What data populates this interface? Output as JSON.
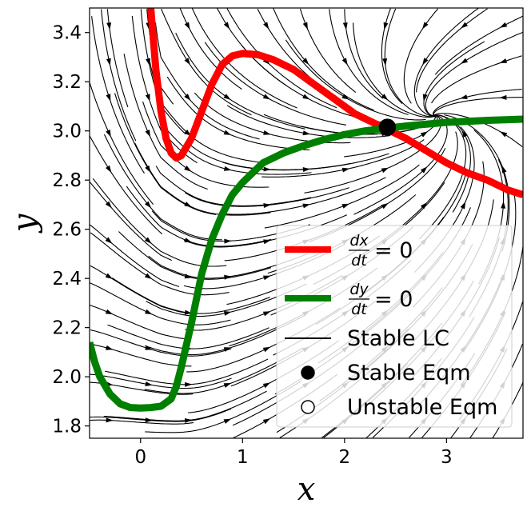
{
  "chart_data": {
    "type": "line",
    "title": "",
    "xlabel": "x",
    "ylabel": "y",
    "xlim": [
      -0.5,
      3.75
    ],
    "ylim": [
      1.75,
      3.5
    ],
    "x_ticks": [
      0,
      1,
      2,
      3
    ],
    "x_tick_labels": [
      "0",
      "1",
      "2",
      "3"
    ],
    "y_ticks": [
      1.8,
      2.0,
      2.2,
      2.4,
      2.6,
      2.8,
      3.0,
      3.2,
      3.4
    ],
    "y_tick_labels": [
      "1.8",
      "2.0",
      "2.2",
      "2.4",
      "2.6",
      "2.8",
      "3.0",
      "3.2",
      "3.4"
    ],
    "grid": false,
    "background": "streamplot of the vector field (black streamlines with arrowheads)",
    "legend_position": "bottom-right",
    "series": [
      {
        "name": "dx/dt = 0",
        "color": "#ff0000",
        "x": [
          0.1,
          0.15,
          0.2,
          0.25,
          0.3,
          0.35,
          0.4,
          0.5,
          0.6,
          0.7,
          0.8,
          0.9,
          1.0,
          1.15,
          1.3,
          1.5,
          1.7,
          1.9,
          2.1,
          2.3,
          2.4,
          2.6,
          2.8,
          3.0,
          3.2,
          3.4,
          3.6,
          3.75
        ],
        "y": [
          3.5,
          3.25,
          3.08,
          2.97,
          2.91,
          2.89,
          2.9,
          2.97,
          3.08,
          3.19,
          3.27,
          3.305,
          3.315,
          3.31,
          3.29,
          3.25,
          3.19,
          3.13,
          3.07,
          3.03,
          3.01,
          2.97,
          2.92,
          2.87,
          2.83,
          2.8,
          2.76,
          2.74
        ]
      },
      {
        "name": "dy/dt = 0",
        "color": "#008000",
        "x": [
          -0.5,
          -0.45,
          -0.4,
          -0.3,
          -0.2,
          -0.1,
          0.0,
          0.1,
          0.2,
          0.3,
          0.35,
          0.4,
          0.5,
          0.6,
          0.7,
          0.8,
          0.9,
          1.0,
          1.1,
          1.2,
          1.4,
          1.6,
          1.8,
          2.0,
          2.2,
          2.4,
          2.6,
          3.0,
          3.4,
          3.75
        ],
        "y": [
          2.14,
          2.06,
          2.0,
          1.93,
          1.89,
          1.875,
          1.873,
          1.875,
          1.88,
          1.91,
          1.96,
          2.04,
          2.22,
          2.42,
          2.56,
          2.66,
          2.74,
          2.79,
          2.83,
          2.87,
          2.91,
          2.94,
          2.965,
          2.985,
          3.0,
          3.01,
          3.02,
          3.035,
          3.043,
          3.048
        ]
      }
    ],
    "points": [
      {
        "name": "Stable Eqm",
        "x": 2.42,
        "y": 3.015,
        "filled": true
      }
    ],
    "legend": {
      "entries": [
        {
          "label": "dx/dt = 0",
          "kind": "line",
          "color": "#ff0000",
          "num": "dx",
          "den": "dt",
          "rhs": "= 0"
        },
        {
          "label": "dy/dt = 0",
          "kind": "line",
          "color": "#008000",
          "num": "dy",
          "den": "dt",
          "rhs": "= 0"
        },
        {
          "label": "Stable LC",
          "kind": "line",
          "color": "#000000"
        },
        {
          "label": "Stable Eqm",
          "kind": "filled-marker",
          "color": "#000000"
        },
        {
          "label": "Unstable Eqm",
          "kind": "open-marker",
          "color": "#000000"
        }
      ]
    }
  }
}
